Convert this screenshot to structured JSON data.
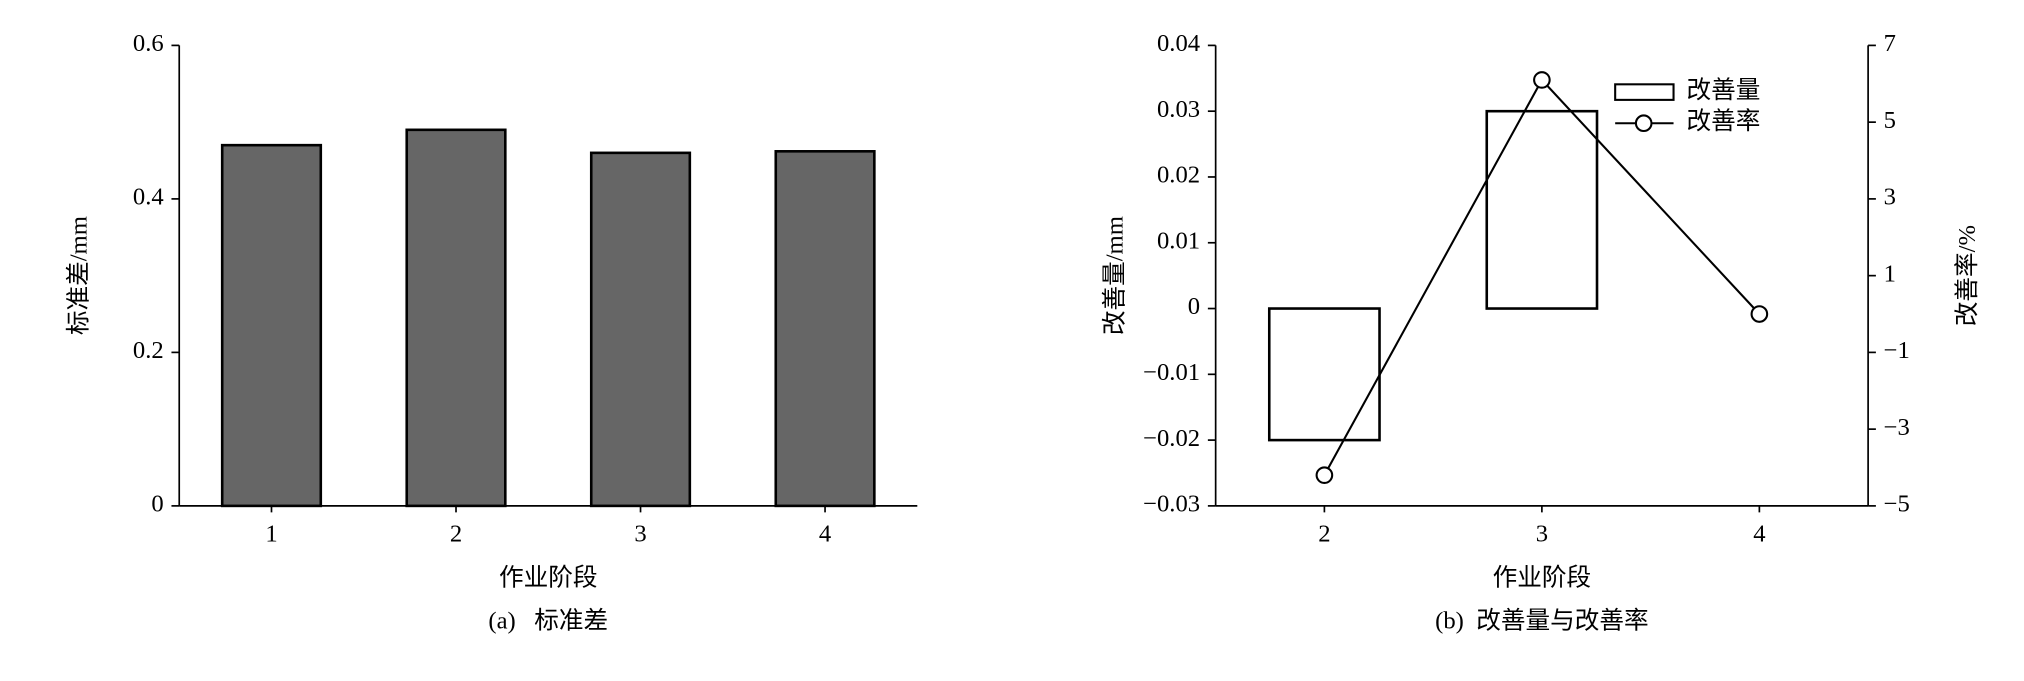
{
  "chart_data": [
    {
      "type": "bar",
      "categories": [
        "1",
        "2",
        "3",
        "4"
      ],
      "values": [
        0.47,
        0.49,
        0.46,
        0.462
      ],
      "color": "#666666",
      "ylim": [
        0,
        0.6
      ],
      "yticks": [
        0,
        0.2,
        0.4,
        0.6
      ],
      "ylabel": "标准差/mm",
      "xlabel": "作业阶段",
      "caption": "(a)   标准差"
    },
    {
      "type": "bar-line",
      "categories": [
        "2",
        "3",
        "4"
      ],
      "series": [
        {
          "name": "改善量",
          "type": "bar",
          "color": "#ffffff",
          "values": [
            -0.02,
            0.03,
            0
          ]
        },
        {
          "name": "改善率",
          "type": "line",
          "axis": "y2",
          "color": "#000000",
          "values": [
            -4.2,
            6.1,
            0
          ]
        }
      ],
      "ylim": [
        -0.03,
        0.04
      ],
      "yticks": [
        {
          "value": -0.03,
          "label": "−0.03"
        },
        {
          "value": -0.02,
          "label": "−0.02"
        },
        {
          "value": -0.01,
          "label": "−0.01"
        },
        0,
        0.01,
        0.02,
        0.03,
        0.04
      ],
      "y2lim": [
        -5,
        7
      ],
      "y2ticks": [
        {
          "value": -5,
          "label": "−5"
        },
        {
          "value": -3,
          "label": "−3"
        },
        {
          "value": -1,
          "label": "−1"
        },
        1,
        3,
        5,
        7
      ],
      "ylabel": "改善量/mm",
      "y2label": "改善率/%",
      "xlabel": "作业阶段",
      "caption": "(b)  改善量与改善率"
    }
  ]
}
